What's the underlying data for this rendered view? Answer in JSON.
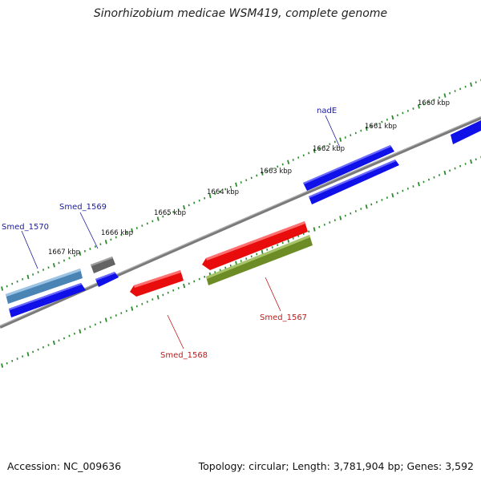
{
  "title": "Sinorhizobium medicae WSM419, complete genome",
  "footer": {
    "accession": "Accession: NC_009636",
    "summary": "Topology: circular; Length: 3,781,904 bp; Genes: 3,592"
  },
  "colors": {
    "backbone": "#7a7a7a",
    "tick": "#2a8a2a",
    "cds_forward": "#1010e8",
    "cds_reverse": "#e80c0c",
    "cds_gray": "#646464",
    "cds_steel": "#4a84b4",
    "cds_olive": "#6e8c26",
    "label_forward": "#1a1aa0",
    "label_reverse": "#c01818"
  },
  "scale_labels": [
    "1660 kbp",
    "1661 kbp",
    "1662 kbp",
    "1663 kbp",
    "1664 kbp",
    "1665 kbp",
    "1666 kbp",
    "1667 kbp"
  ],
  "gene_labels": {
    "nade": "nadE",
    "smed_1569": "Smed_1569",
    "smed_1570": "Smed_1570",
    "smed_1567": "Smed_1567",
    "smed_1568": "Smed_1568"
  }
}
